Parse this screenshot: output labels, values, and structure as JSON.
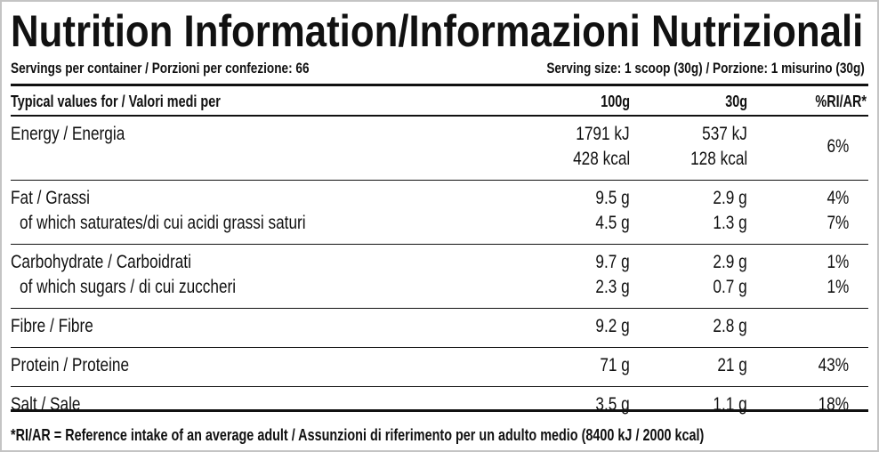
{
  "title": "Nutrition Information/Informazioni Nutrizionali",
  "servings": "Servings per container / Porzioni per confezione: 66",
  "serving_size": "Serving size: 1 scoop (30g) / Porzione: 1 misurino (30g)",
  "table": {
    "header": [
      "Typical values for / Valori medi per",
      "100g",
      "30g",
      "%RI/AR*"
    ],
    "groups": [
      [
        {
          "label": "Energy / Energia",
          "per100": [
            "1791 kJ",
            "428 kcal"
          ],
          "per30": [
            "537 kJ",
            "128 kcal"
          ],
          "ri": "6%"
        }
      ],
      [
        {
          "label": "Fat / Grassi",
          "per100": "9.5 g",
          "per30": "2.9 g",
          "ri": "4%"
        },
        {
          "label": "of which saturates/di cui acidi grassi saturi",
          "per100": "4.5 g",
          "per30": "1.3 g",
          "ri": "7%"
        }
      ],
      [
        {
          "label": "Carbohydrate / Carboidrati",
          "per100": "9.7 g",
          "per30": "2.9 g",
          "ri": "1%"
        },
        {
          "label": "of which sugars / di cui zuccheri",
          "per100": "2.3 g",
          "per30": "0.7 g",
          "ri": "1%"
        }
      ],
      [
        {
          "label": "Fibre / Fibre",
          "per100": "9.2 g",
          "per30": "2.8 g"
        }
      ],
      [
        {
          "label": "Protein / Proteine",
          "per100": "71 g",
          "per30": "21 g",
          "ri": "43%"
        }
      ],
      [
        {
          "label": "Salt / Sale",
          "per100": "3.5 g",
          "per30": "1.1 g",
          "ri": "18%"
        }
      ]
    ]
  },
  "footnote": "*RI/AR = Reference intake of an average adult / Assunzioni di riferimento per un adulto medio (8400 kJ / 2000 kcal)"
}
